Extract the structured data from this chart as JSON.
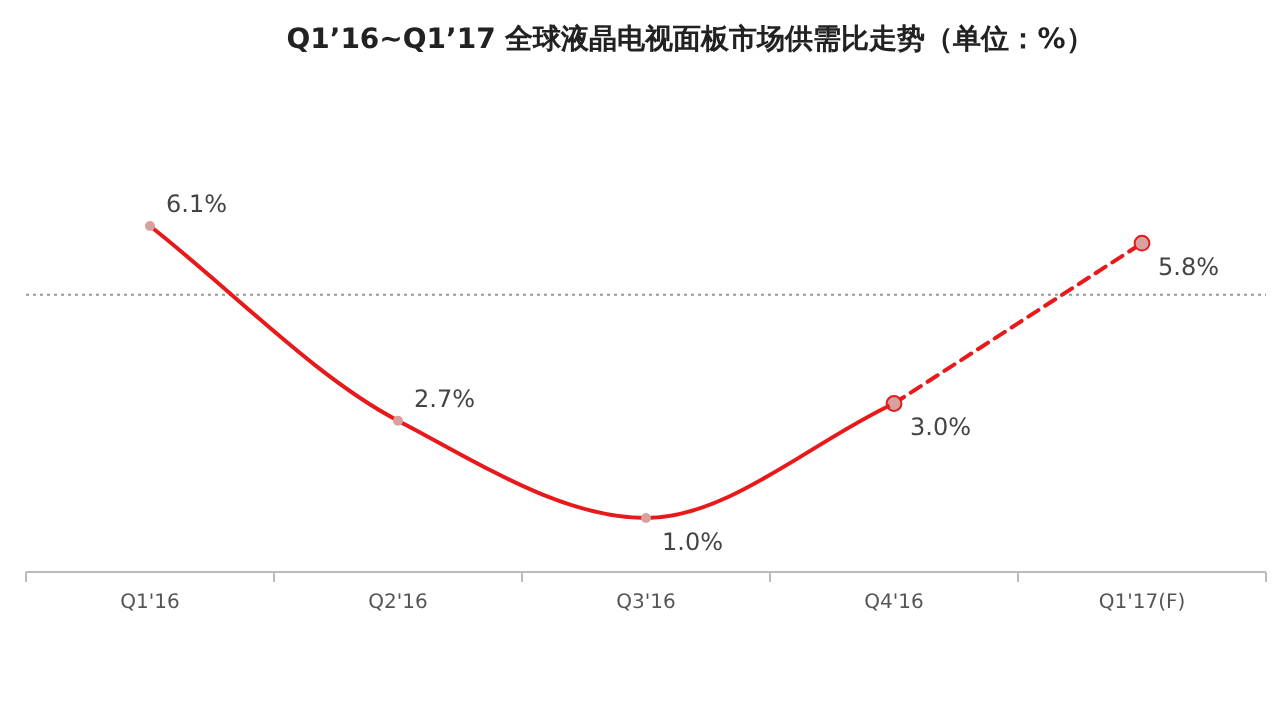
{
  "chart_data": {
    "type": "line",
    "title": "Q1’16~Q1’17 全球液晶电视面板市场供需比走势（单位：%）",
    "categories": [
      "Q1'16",
      "Q2'16",
      "Q3'16",
      "Q4'16",
      "Q1'17(F)"
    ],
    "series": [
      {
        "color": "#e8191a",
        "line_style": "solid",
        "values": [
          6.1,
          2.7,
          1.0,
          3.0,
          null
        ],
        "value_labels": [
          "6.1%",
          "2.7%",
          "1.0%",
          "3.0%",
          null
        ]
      },
      {
        "color": "#e8191a",
        "line_style": "dashed",
        "values": [
          null,
          null,
          null,
          3.0,
          5.8
        ],
        "value_labels": [
          null,
          null,
          null,
          null,
          "5.8%"
        ]
      }
    ],
    "marker": "circle",
    "ref_lines": [
      {
        "axis": "y",
        "value": 4.9,
        "color": "#999999",
        "line_style": "dotted"
      }
    ],
    "grid": false
  }
}
